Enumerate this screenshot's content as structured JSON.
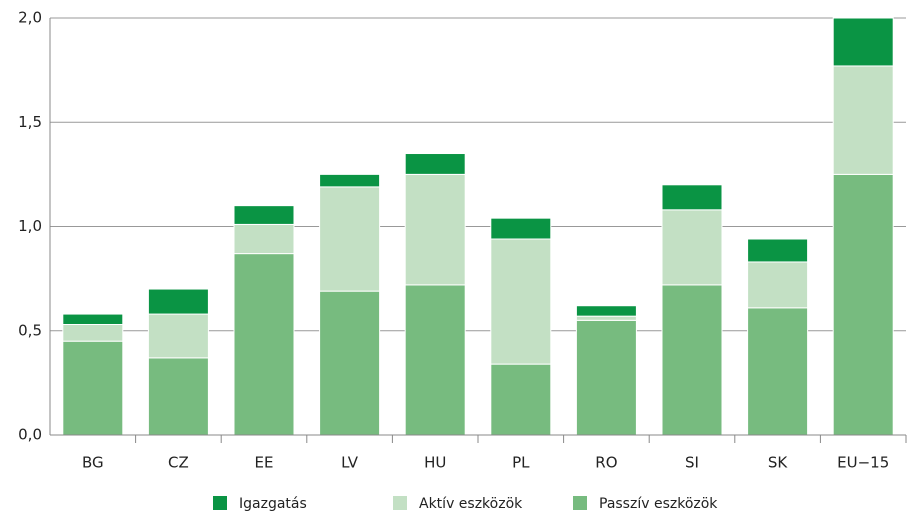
{
  "chart_data": {
    "type": "stacked_bar",
    "categories": [
      "BG",
      "CZ",
      "EE",
      "LV",
      "HU",
      "PL",
      "RO",
      "SI",
      "SK",
      "EU−15"
    ],
    "series": [
      {
        "name": "Igazgatás",
        "color": "#0a9444",
        "values": [
          0.05,
          0.12,
          0.09,
          0.06,
          0.1,
          0.1,
          0.05,
          0.12,
          0.11,
          0.23
        ]
      },
      {
        "name": "Aktív eszközök",
        "color": "#c3e0c4",
        "values": [
          0.08,
          0.21,
          0.14,
          0.5,
          0.53,
          0.6,
          0.02,
          0.36,
          0.22,
          0.52
        ]
      },
      {
        "name": "Passzív eszközök",
        "color": "#77bb7f",
        "values": [
          0.45,
          0.37,
          0.87,
          0.69,
          0.72,
          0.34,
          0.55,
          0.72,
          0.61,
          1.25
        ]
      }
    ],
    "ylim": [
      0,
      2
    ],
    "yticks": [
      {
        "value": 0,
        "label": "0,0"
      },
      {
        "value": 0.5,
        "label": "0,5"
      },
      {
        "value": 1,
        "label": "1,0"
      },
      {
        "value": 1.5,
        "label": "1,5"
      },
      {
        "value": 2,
        "label": "2,0"
      }
    ],
    "grid": true,
    "legend": "bottom"
  }
}
